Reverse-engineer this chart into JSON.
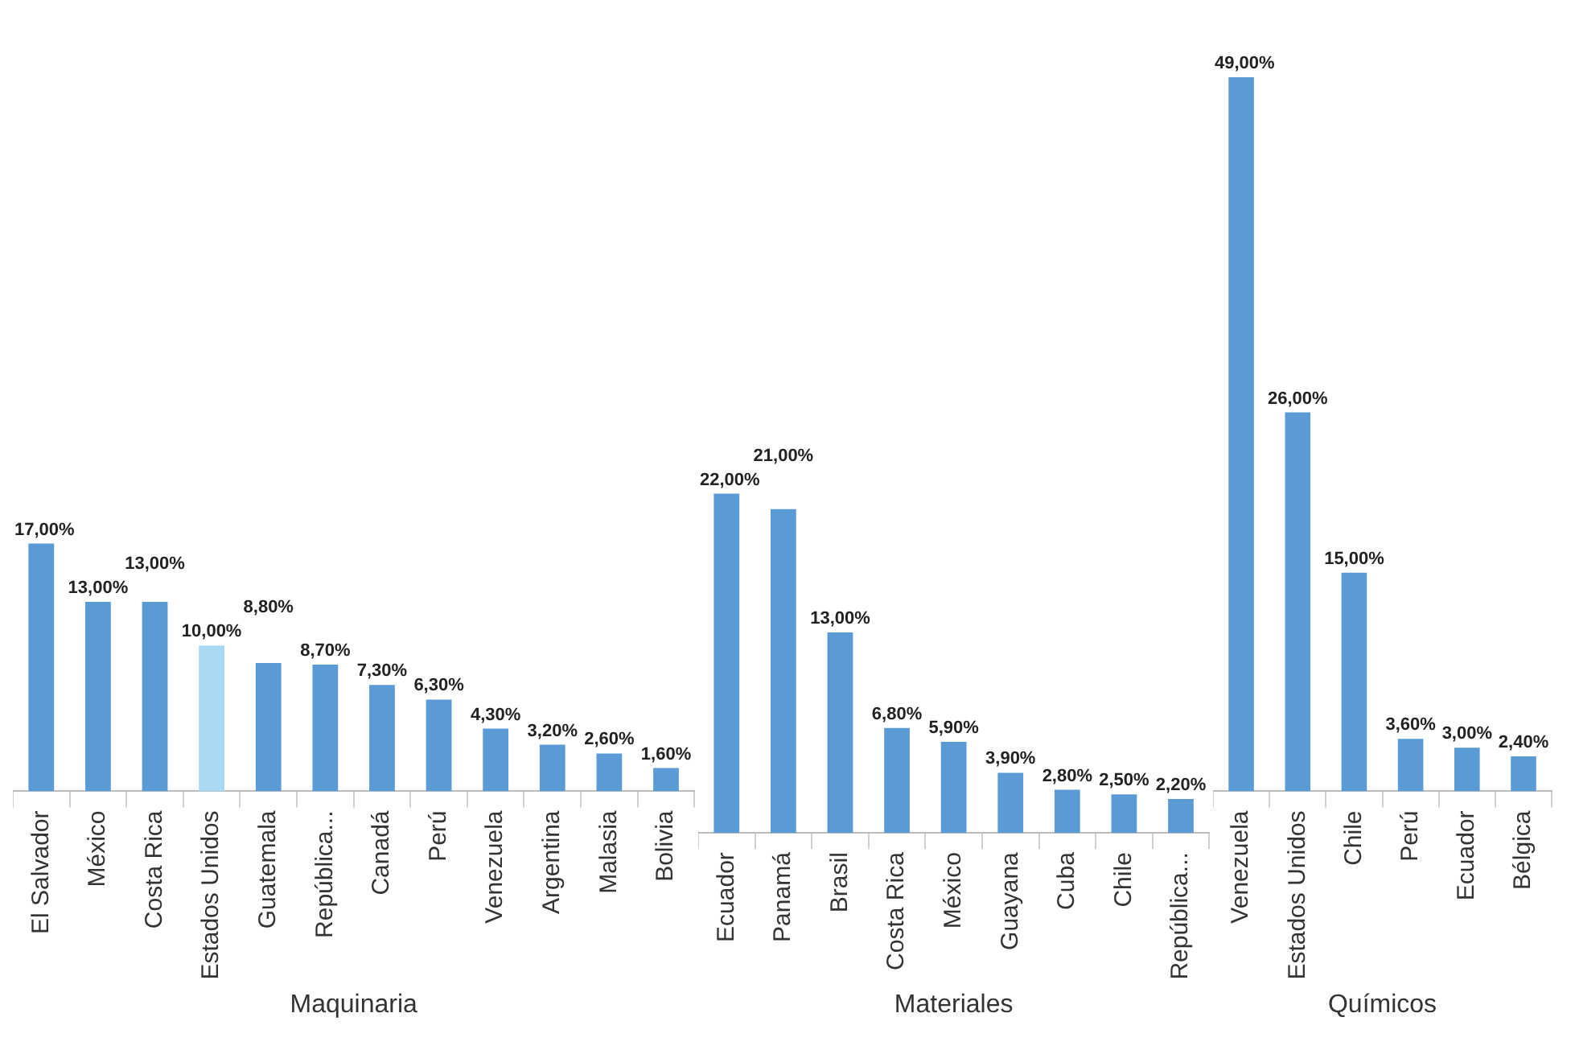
{
  "chart_data": [
    {
      "type": "bar",
      "xlabel": "Maquinaria",
      "categories": [
        "El Salvador",
        "México",
        "Costa Rica",
        "Estados Unidos",
        "Guatemala",
        "República...",
        "Canadá",
        "Perú",
        "Venezuela",
        "Argentina",
        "Malasia",
        "Bolivia"
      ],
      "values": [
        17,
        13,
        13,
        10,
        8.8,
        8.7,
        7.3,
        6.3,
        4.3,
        3.2,
        2.6,
        1.6
      ],
      "value_labels": [
        "17,00%",
        "13,00%",
        "13,00%",
        "10,00%",
        "8,80%",
        "8,70%",
        "7,30%",
        "6,30%",
        "4,30%",
        "3,20%",
        "2,60%",
        "1,60%"
      ],
      "colors": [
        "#5b9bd5",
        "#5b9bd5",
        "#5b9bd5",
        "#a9d8f5",
        "#5b9bd5",
        "#5b9bd5",
        "#5b9bd5",
        "#5b9bd5",
        "#5b9bd5",
        "#5b9bd5",
        "#5b9bd5",
        "#5b9bd5"
      ],
      "tick_labels": "x"
    },
    {
      "type": "bar",
      "xlabel": "Materiales",
      "categories": [
        "Ecuador",
        "Panamá",
        "Brasil",
        "Costa Rica",
        "México",
        "Guayana",
        "Cuba",
        "Chile",
        "República..."
      ],
      "values": [
        22,
        21,
        13,
        6.8,
        5.9,
        3.9,
        2.8,
        2.5,
        2.2
      ],
      "value_labels": [
        "22,00%",
        "21,00%",
        "13,00%",
        "6,80%",
        "5,90%",
        "3,90%",
        "2,80%",
        "2,50%",
        "2,20%"
      ],
      "color": "#5b9bd5",
      "tick_labels": "x"
    },
    {
      "type": "bar",
      "xlabel": "Químicos",
      "categories": [
        "Venezuela",
        "Estados Unidos",
        "Chile",
        "Perú",
        "Ecuador",
        "Bélgica"
      ],
      "values": [
        49,
        26,
        15,
        3.6,
        3,
        2.4
      ],
      "value_labels": [
        "49,00%",
        "26,00%",
        "15,00%",
        "3,60%",
        "3,00%",
        "2,40%"
      ],
      "color": "#5b9bd5",
      "tick_labels": "x"
    }
  ]
}
